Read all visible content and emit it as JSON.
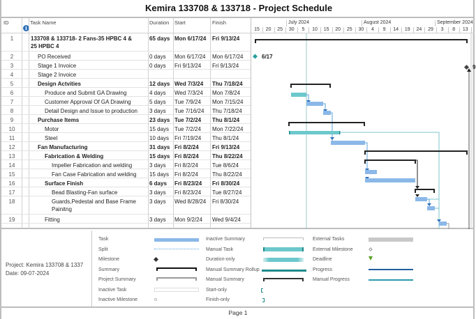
{
  "title": "Kemira 133708 & 133718 - Project Schedule",
  "table": {
    "headers": {
      "id": "ID",
      "info": "i",
      "name": "Task Name",
      "duration": "Duration",
      "start": "Start",
      "finish": "Finish"
    },
    "rows": [
      {
        "id": "1",
        "name": "133708 & 133718- 2 Fans-35 HPBC 4 &",
        "name2": "25 HPBC 4",
        "duration": "65 days",
        "start": "Mon 6/17/24",
        "finish": "Fri 9/13/24",
        "bold": true,
        "indent": 0
      },
      {
        "id": "2",
        "name": "PO Received",
        "duration": "0 days",
        "start": "Mon 6/17/24",
        "finish": "Mon 6/17/24",
        "bold": false,
        "indent": 1
      },
      {
        "id": "3",
        "name": "Stage 1 Invoice",
        "duration": "0 days",
        "start": "Fri 9/13/24",
        "finish": "Fri 9/13/24",
        "bold": false,
        "indent": 1
      },
      {
        "id": "4",
        "name": "Stage 2 Invoice",
        "duration": "",
        "start": "",
        "finish": "",
        "bold": false,
        "indent": 1
      },
      {
        "id": "5",
        "name": "Design Actvities",
        "duration": "12 days",
        "start": "Wed 7/3/24",
        "finish": "Thu 7/18/24",
        "bold": true,
        "indent": 1
      },
      {
        "id": "6",
        "name": "Produce and Submit GA Drawing",
        "duration": "4 days",
        "start": "Wed 7/3/24",
        "finish": "Mon 7/8/24",
        "bold": false,
        "indent": 2
      },
      {
        "id": "7",
        "name": "Customer Approval Of GA Drawing",
        "duration": "5 days",
        "start": "Tue 7/9/24",
        "finish": "Mon 7/15/24",
        "bold": false,
        "indent": 2
      },
      {
        "id": "8",
        "name": "Detail Design  and Issue to production",
        "duration": "3 days",
        "start": "Tue 7/16/24",
        "finish": "Thu 7/18/24",
        "bold": false,
        "indent": 2
      },
      {
        "id": "9",
        "name": "Purchase Items",
        "duration": "23 days",
        "start": "Tue 7/2/24",
        "finish": "Thu 8/1/24",
        "bold": true,
        "indent": 1
      },
      {
        "id": "10",
        "name": "Motor",
        "duration": "15 days",
        "start": "Tue 7/2/24",
        "finish": "Mon 7/22/24",
        "bold": false,
        "indent": 2
      },
      {
        "id": "11",
        "name": "Steel",
        "duration": "10 days",
        "start": "Fri 7/19/24",
        "finish": "Thu 8/1/24",
        "bold": false,
        "indent": 2
      },
      {
        "id": "12",
        "name": "Fan Manufacturing",
        "duration": "31 days",
        "start": "Fri 8/2/24",
        "finish": "Fri 9/13/24",
        "bold": true,
        "indent": 1
      },
      {
        "id": "13",
        "name": "Fabrication & Welding",
        "duration": "15 days",
        "start": "Fri 8/2/24",
        "finish": "Thu 8/22/24",
        "bold": true,
        "indent": 2
      },
      {
        "id": "14",
        "name": "Impeller Fabrication and welding",
        "duration": "3 days",
        "start": "Fri 8/2/24",
        "finish": "Tue 8/6/24",
        "bold": false,
        "indent": 3
      },
      {
        "id": "15",
        "name": "Fan Case Fabrication and welding",
        "duration": "15 days",
        "start": "Fri 8/2/24",
        "finish": "Thu 8/22/24",
        "bold": false,
        "indent": 3
      },
      {
        "id": "16",
        "name": "Surface Finish",
        "duration": "6 days",
        "start": "Fri 8/23/24",
        "finish": "Fri 8/30/24",
        "bold": true,
        "indent": 2
      },
      {
        "id": "17",
        "name": "Bead Blasting-Fan surface",
        "duration": "3 days",
        "start": "Fri 8/23/24",
        "finish": "Tue 8/27/24",
        "bold": false,
        "indent": 3
      },
      {
        "id": "18",
        "name": "Guards,Pedestal and Base Frame",
        "name2": "Painitng",
        "duration": "3 days",
        "start": "Wed 8/28/24",
        "finish": "Fri 8/30/24",
        "bold": false,
        "indent": 3
      },
      {
        "id": "19",
        "name": "Fitting",
        "duration": "3 days",
        "start": "Mon 9/2/24",
        "finish": "Wed 9/4/24",
        "bold": false,
        "indent": 2
      }
    ]
  },
  "timescale": {
    "months": [
      "July 2024",
      "August 2024",
      "September 2024"
    ],
    "days": [
      "15",
      "20",
      "25",
      "30",
      "5",
      "10",
      "15",
      "20",
      "25",
      "30",
      "4",
      "9",
      "14",
      "19",
      "24",
      "29",
      "3",
      "8",
      "13"
    ]
  },
  "chart": {
    "milestone_label": "6/17",
    "milestone_label_2": "9",
    "colors": {
      "task": "#8bb8e8",
      "manual": "#6cc8cc",
      "summary": "#222222",
      "link": "#5aa0d8",
      "link_teal": "#7cc4cc",
      "milestone": "#2aa0a0"
    }
  },
  "legend": {
    "project": "Project: Kemira 133708 & 1337",
    "date": "Date: 09-07-2024",
    "col1": [
      "Task",
      "Split",
      "Milestone",
      "Summary",
      "Project Summary",
      "Inactive Task",
      "Inactive Milestone"
    ],
    "col2": [
      "Inactive Summary",
      "Manual Task",
      "Duration-only",
      "Manual Summary Rollup",
      "Manual Summary",
      "Start-only",
      "Finish-only"
    ],
    "col3": [
      "External Tasks",
      "External Milestone",
      "Deadline",
      "Progress",
      "Manual Progress"
    ]
  },
  "footer": {
    "page": "Page 1"
  }
}
